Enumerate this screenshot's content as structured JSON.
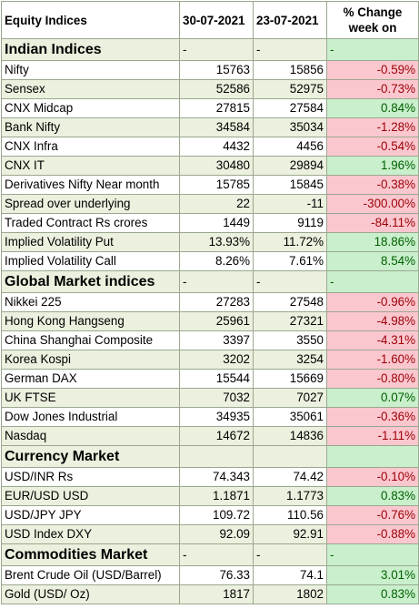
{
  "header": {
    "col0": "Equity Indices",
    "col1": "30-07-2021",
    "col2": "23-07-2021",
    "col3": "% Change week on"
  },
  "colors": {
    "positive_bg": "#c9efcc",
    "positive_text": "#006100",
    "negative_bg": "#fbc7cf",
    "negative_text": "#9c0006",
    "band_bg": "#ebf1de"
  },
  "sections": [
    {
      "name": "Indian Indices",
      "p1": "-",
      "p2": "-",
      "p3": "-",
      "rows": [
        {
          "label": "Nifty",
          "v1": "15763",
          "v2": "15856",
          "chg": "-0.59%"
        },
        {
          "label": "Sensex",
          "v1": "52586",
          "v2": "52975",
          "chg": "-0.73%"
        },
        {
          "label": "CNX Midcap",
          "v1": "27815",
          "v2": "27584",
          "chg": "0.84%"
        },
        {
          "label": "Bank Nifty",
          "v1": "34584",
          "v2": "35034",
          "chg": "-1.28%"
        },
        {
          "label": "CNX Infra",
          "v1": "4432",
          "v2": "4456",
          "chg": "-0.54%"
        },
        {
          "label": "CNX IT",
          "v1": "30480",
          "v2": "29894",
          "chg": "1.96%"
        },
        {
          "label": "Derivatives Nifty Near month",
          "v1": "15785",
          "v2": "15845",
          "chg": "-0.38%"
        },
        {
          "label": "Spread over underlying",
          "v1": "22",
          "v2": "-11",
          "chg": "-300.00%"
        },
        {
          "label": "Traded Contract Rs crores",
          "v1": "1449",
          "v2": "9119",
          "chg": "-84.11%"
        },
        {
          "label": "Implied Volatility Put",
          "v1": "13.93%",
          "v2": "11.72%",
          "chg": "18.86%"
        },
        {
          "label": "Implied Volatility Call",
          "v1": "8.26%",
          "v2": "7.61%",
          "chg": "8.54%"
        }
      ]
    },
    {
      "name": "Global Market indices",
      "p1": "-",
      "p2": "-",
      "p3": "-",
      "rows": [
        {
          "label": "Nikkei 225",
          "v1": "27283",
          "v2": "27548",
          "chg": "-0.96%"
        },
        {
          "label": "Hong Kong Hangseng",
          "v1": "25961",
          "v2": "27321",
          "chg": "-4.98%"
        },
        {
          "label": "China Shanghai Composite",
          "v1": "3397",
          "v2": "3550",
          "chg": "-4.31%"
        },
        {
          "label": "Korea Kospi",
          "v1": "3202",
          "v2": "3254",
          "chg": "-1.60%"
        },
        {
          "label": "German DAX",
          "v1": "15544",
          "v2": "15669",
          "chg": "-0.80%"
        },
        {
          "label": "UK FTSE",
          "v1": "7032",
          "v2": "7027",
          "chg": "0.07%"
        },
        {
          "label": "Dow Jones Industrial",
          "v1": "34935",
          "v2": "35061",
          "chg": "-0.36%"
        },
        {
          "label": "Nasdaq",
          "v1": "14672",
          "v2": "14836",
          "chg": "-1.11%"
        }
      ]
    },
    {
      "name": "Currency Market",
      "p1": "",
      "p2": "",
      "p3": "",
      "rows": [
        {
          "label": "USD/INR Rs",
          "v1": "74.343",
          "v2": "74.42",
          "chg": "-0.10%"
        },
        {
          "label": "EUR/USD USD",
          "v1": "1.1871",
          "v2": "1.1773",
          "chg": "0.83%"
        },
        {
          "label": "USD/JPY JPY",
          "v1": "109.72",
          "v2": "110.56",
          "chg": "-0.76%"
        },
        {
          "label": "USD Index DXY",
          "v1": "92.09",
          "v2": "92.91",
          "chg": "-0.88%"
        }
      ]
    },
    {
      "name": "Commodities Market",
      "p1": "-",
      "p2": "-",
      "p3": "-",
      "rows": [
        {
          "label": "Brent Crude Oil (USD/Barrel)",
          "v1": "76.33",
          "v2": "74.1",
          "chg": "3.01%"
        },
        {
          "label": "Gold (USD/ Oz)",
          "v1": "1817",
          "v2": "1802",
          "chg": "0.83%"
        }
      ]
    }
  ]
}
